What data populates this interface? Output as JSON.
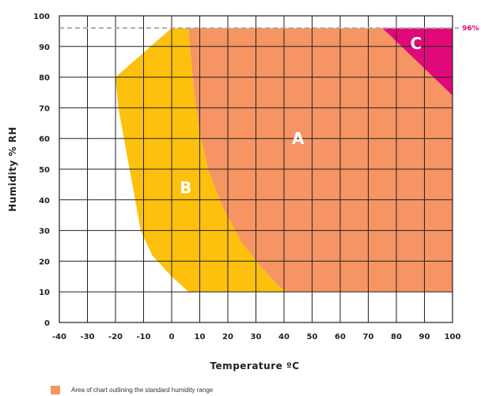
{
  "chart_data": {
    "type": "area",
    "title": "",
    "xlabel": "Temperature ºC",
    "ylabel": "Humidity % RH",
    "xlim": [
      -40,
      100
    ],
    "ylim": [
      0,
      100
    ],
    "x_ticks": [
      -40,
      -30,
      -20,
      -10,
      0,
      10,
      20,
      30,
      40,
      50,
      60,
      70,
      80,
      90,
      100
    ],
    "y_ticks": [
      0,
      10,
      20,
      30,
      40,
      50,
      60,
      70,
      80,
      90,
      100
    ],
    "grid": true,
    "reference_line": {
      "y": 96,
      "label": "96%",
      "style": "dashed",
      "color": "#aaaaaa",
      "label_color": "#e0097a"
    },
    "regions": [
      {
        "name": "B",
        "color": "#fcc00d",
        "points": [
          [
            -20,
            80
          ],
          [
            -20,
            80
          ],
          [
            0,
            96
          ],
          [
            6,
            96
          ],
          [
            7,
            85
          ],
          [
            8,
            75
          ],
          [
            10,
            62
          ],
          [
            13,
            50
          ],
          [
            18,
            38
          ],
          [
            25,
            26
          ],
          [
            32,
            18
          ],
          [
            38,
            12
          ],
          [
            41,
            10
          ],
          [
            6,
            10
          ],
          [
            0,
            15
          ],
          [
            -7,
            22
          ],
          [
            -11,
            30
          ],
          [
            -13,
            40
          ],
          [
            -15,
            50
          ],
          [
            -17,
            60
          ],
          [
            -19,
            70
          ],
          [
            -20,
            80
          ]
        ]
      },
      {
        "name": "A",
        "color": "#f69463",
        "points": [
          [
            6,
            96
          ],
          [
            75,
            96
          ],
          [
            100,
            74
          ],
          [
            100,
            10
          ],
          [
            41,
            10
          ],
          [
            38,
            12
          ],
          [
            32,
            18
          ],
          [
            25,
            26
          ],
          [
            18,
            38
          ],
          [
            13,
            50
          ],
          [
            10,
            62
          ],
          [
            8,
            75
          ],
          [
            7,
            85
          ],
          [
            6,
            96
          ]
        ]
      },
      {
        "name": "C",
        "color": "#e0097a",
        "points": [
          [
            75,
            96
          ],
          [
            100,
            96
          ],
          [
            100,
            74
          ],
          [
            75,
            96
          ]
        ]
      }
    ],
    "legend": [
      {
        "label": "Area of chart outlining the standard humidity range",
        "color": "#f69463"
      }
    ]
  }
}
